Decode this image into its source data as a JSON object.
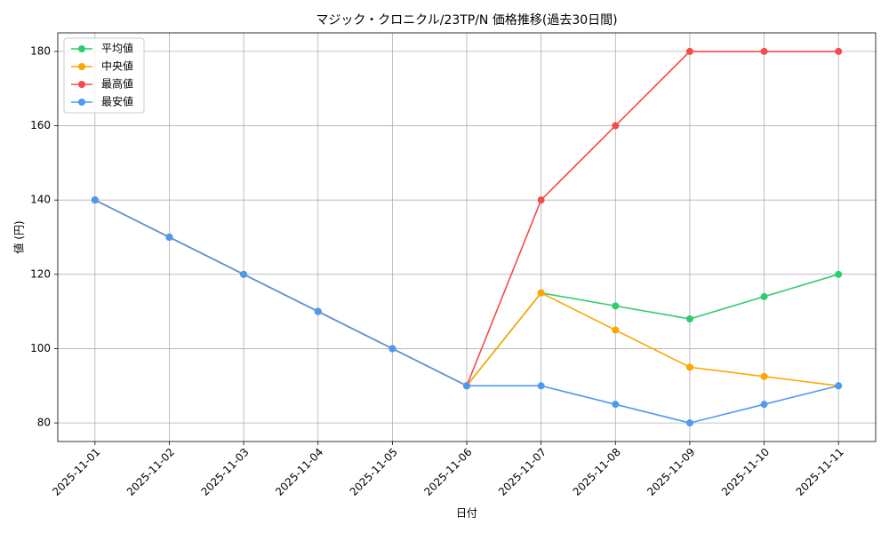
{
  "chart_data": {
    "type": "line",
    "title": "マジック・クロニクル/23TP/N 価格推移(過去30日間)",
    "x_label": "日付",
    "y_label": "値 (円)",
    "categories": [
      "2025-11-01",
      "2025-11-02",
      "2025-11-03",
      "2025-11-04",
      "2025-11-05",
      "2025-11-06",
      "2025-11-07",
      "2025-11-08",
      "2025-11-09",
      "2025-11-10",
      "2025-11-11"
    ],
    "series": [
      {
        "name": "平均値",
        "color": "#2ecc71",
        "values": [
          140,
          130,
          120,
          110,
          100,
          90,
          115,
          111.5,
          108,
          114,
          120
        ]
      },
      {
        "name": "中央値",
        "color": "#ffa500",
        "values": [
          140,
          130,
          120,
          110,
          100,
          90,
          115,
          105,
          95,
          92.5,
          90
        ]
      },
      {
        "name": "最高値",
        "color": "#f44b4b",
        "values": [
          140,
          130,
          120,
          110,
          100,
          90,
          140,
          160,
          180,
          180,
          180
        ]
      },
      {
        "name": "最安値",
        "color": "#4e9af1",
        "values": [
          140,
          130,
          120,
          110,
          100,
          90,
          90,
          85,
          80,
          85,
          90
        ]
      }
    ],
    "ylim": [
      75,
      185
    ],
    "yticks": [
      80,
      100,
      120,
      140,
      160,
      180
    ],
    "grid": true,
    "legend": "upper-left"
  }
}
